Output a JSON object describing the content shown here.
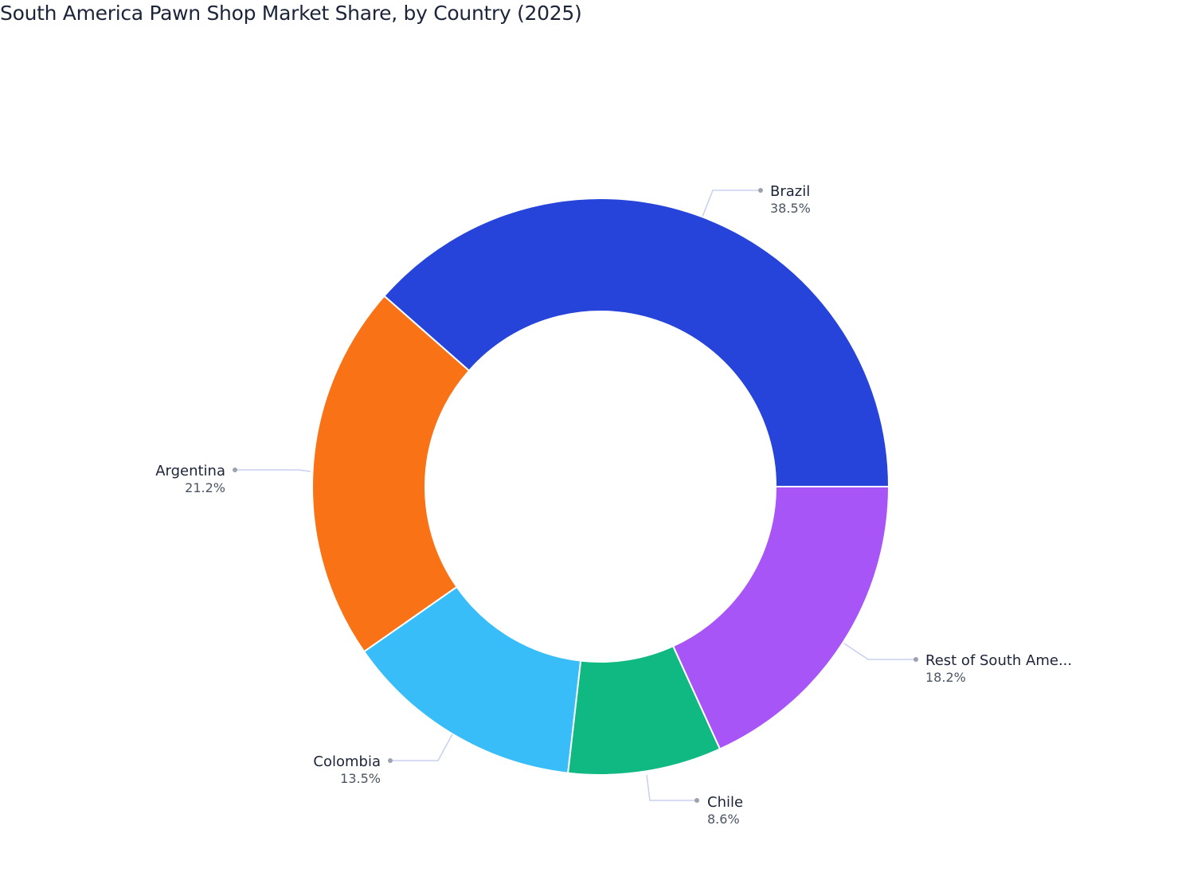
{
  "title": "South America Pawn Shop Market Share, by Country (2025)",
  "chart_data": {
    "type": "pie",
    "subtype": "donut",
    "title": "South America Pawn Shop Market Share, by Country (2025)",
    "categories": [
      "Brazil",
      "Argentina",
      "Colombia",
      "Chile",
      "Rest of South America"
    ],
    "values": [
      38.5,
      21.2,
      13.5,
      8.6,
      18.2
    ],
    "unit": "%",
    "colors": [
      "#2644d9",
      "#f97316",
      "#38bdf8",
      "#10b981",
      "#a855f7"
    ],
    "hole": 0.61,
    "direction": "counterclockwise",
    "start_angle": "3 o'clock",
    "legend": "none (outside labels with leader lines)"
  },
  "labels": [
    {
      "name": "Brazil",
      "pct": "38.5%"
    },
    {
      "name": "Argentina",
      "pct": "21.2%"
    },
    {
      "name": "Colombia",
      "pct": "13.5%"
    },
    {
      "name": "Chile",
      "pct": "8.6%"
    },
    {
      "name": "Rest of South Ame...",
      "pct": "18.2%"
    }
  ]
}
